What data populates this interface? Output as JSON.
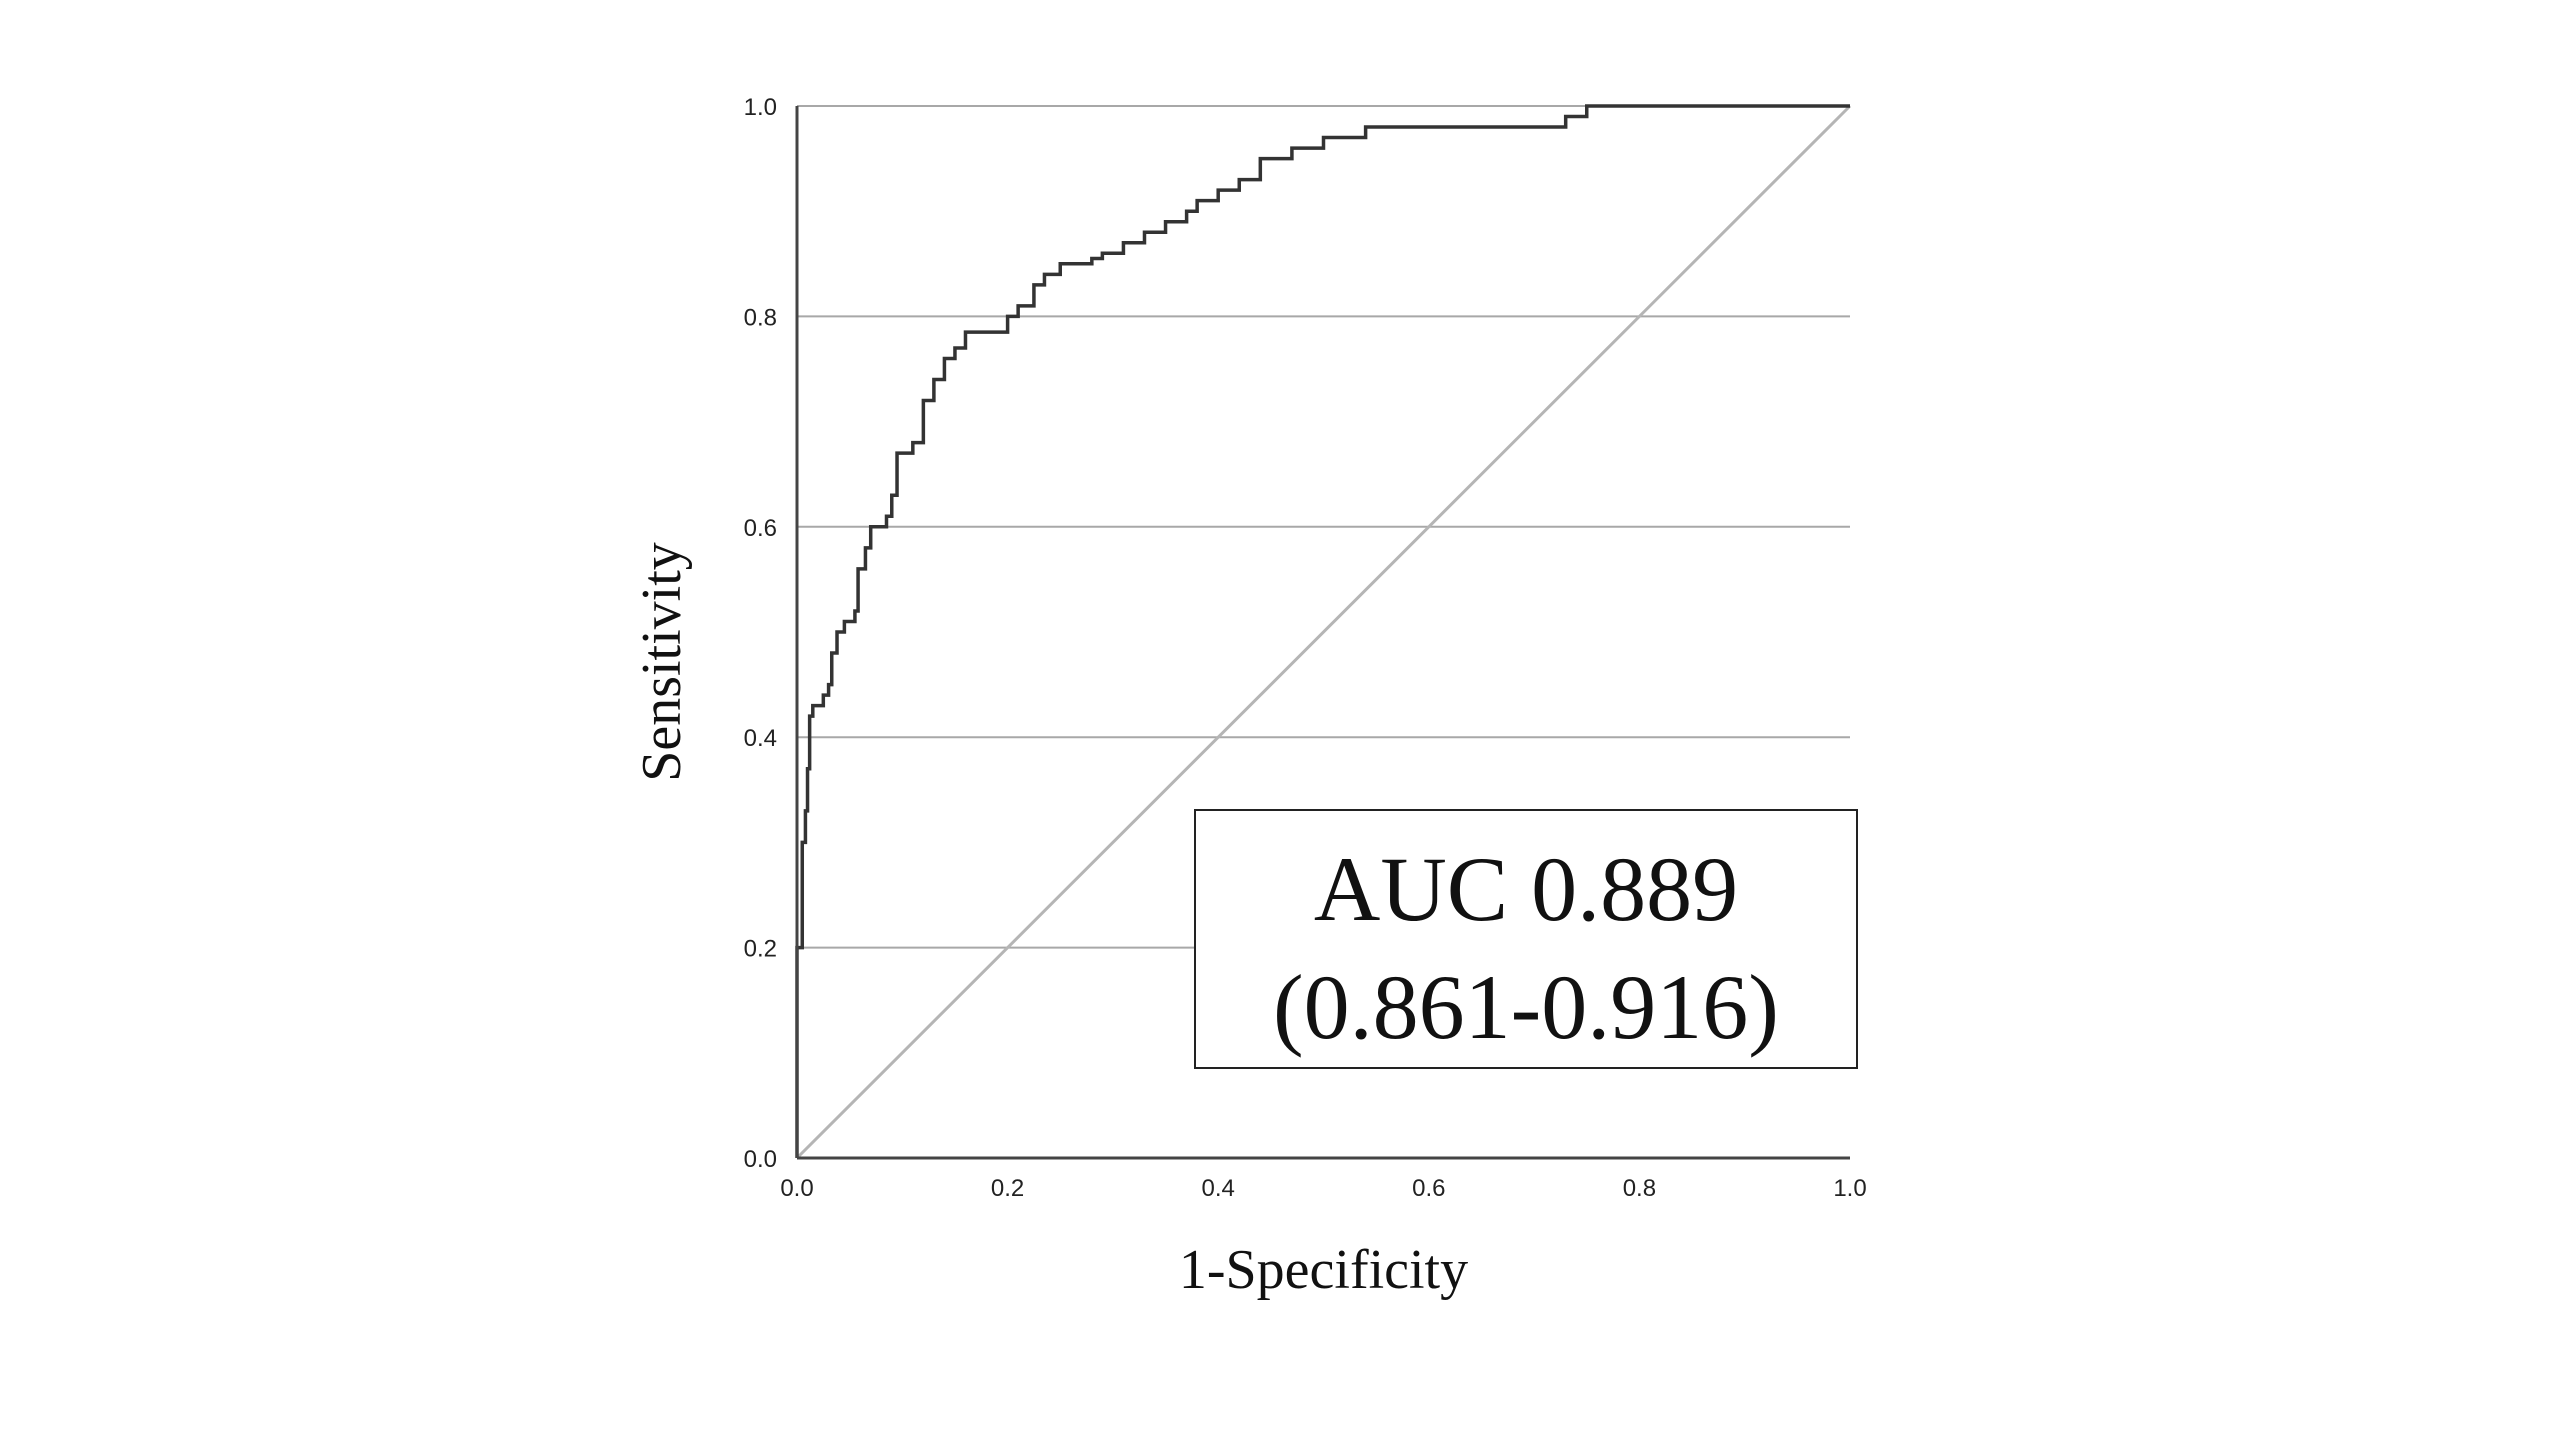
{
  "chart_data": {
    "type": "line",
    "xlabel": "1-Specificity",
    "ylabel": "Sensitivity",
    "xlim": [
      0.0,
      1.0
    ],
    "ylim": [
      0.0,
      1.0
    ],
    "x_ticks": [
      "0.0",
      "0.2",
      "0.4",
      "0.6",
      "0.8",
      "1.0"
    ],
    "y_ticks": [
      "0.0",
      "0.2",
      "0.4",
      "0.6",
      "0.8",
      "1.0"
    ],
    "grid": "horizontal",
    "annotation": {
      "line1": "AUC 0.889",
      "line2": "(0.861-0.916)",
      "placement": "bottom-right"
    },
    "series": [
      {
        "style": "step",
        "color": "#333333",
        "points": [
          [
            0.0,
            0.0
          ],
          [
            0.0,
            0.2
          ],
          [
            0.005,
            0.21
          ],
          [
            0.005,
            0.3
          ],
          [
            0.008,
            0.33
          ],
          [
            0.01,
            0.37
          ],
          [
            0.012,
            0.42
          ],
          [
            0.015,
            0.43
          ],
          [
            0.025,
            0.44
          ],
          [
            0.03,
            0.45
          ],
          [
            0.033,
            0.48
          ],
          [
            0.038,
            0.5
          ],
          [
            0.045,
            0.51
          ],
          [
            0.055,
            0.52
          ],
          [
            0.058,
            0.56
          ],
          [
            0.065,
            0.58
          ],
          [
            0.07,
            0.6
          ],
          [
            0.085,
            0.61
          ],
          [
            0.09,
            0.63
          ],
          [
            0.095,
            0.67
          ],
          [
            0.11,
            0.68
          ],
          [
            0.12,
            0.72
          ],
          [
            0.13,
            0.74
          ],
          [
            0.14,
            0.76
          ],
          [
            0.15,
            0.77
          ],
          [
            0.16,
            0.785
          ],
          [
            0.2,
            0.8
          ],
          [
            0.21,
            0.81
          ],
          [
            0.225,
            0.83
          ],
          [
            0.235,
            0.84
          ],
          [
            0.25,
            0.85
          ],
          [
            0.28,
            0.855
          ],
          [
            0.29,
            0.86
          ],
          [
            0.31,
            0.87
          ],
          [
            0.33,
            0.88
          ],
          [
            0.35,
            0.89
          ],
          [
            0.37,
            0.9
          ],
          [
            0.38,
            0.91
          ],
          [
            0.4,
            0.92
          ],
          [
            0.42,
            0.93
          ],
          [
            0.44,
            0.95
          ],
          [
            0.47,
            0.96
          ],
          [
            0.5,
            0.97
          ],
          [
            0.54,
            0.98
          ],
          [
            0.73,
            0.99
          ],
          [
            0.75,
            1.0
          ],
          [
            1.0,
            1.0
          ]
        ]
      },
      {
        "style": "reference",
        "color": "#b5b5b5",
        "points": [
          [
            0.0,
            0.0
          ],
          [
            1.0,
            1.0
          ]
        ]
      }
    ]
  }
}
